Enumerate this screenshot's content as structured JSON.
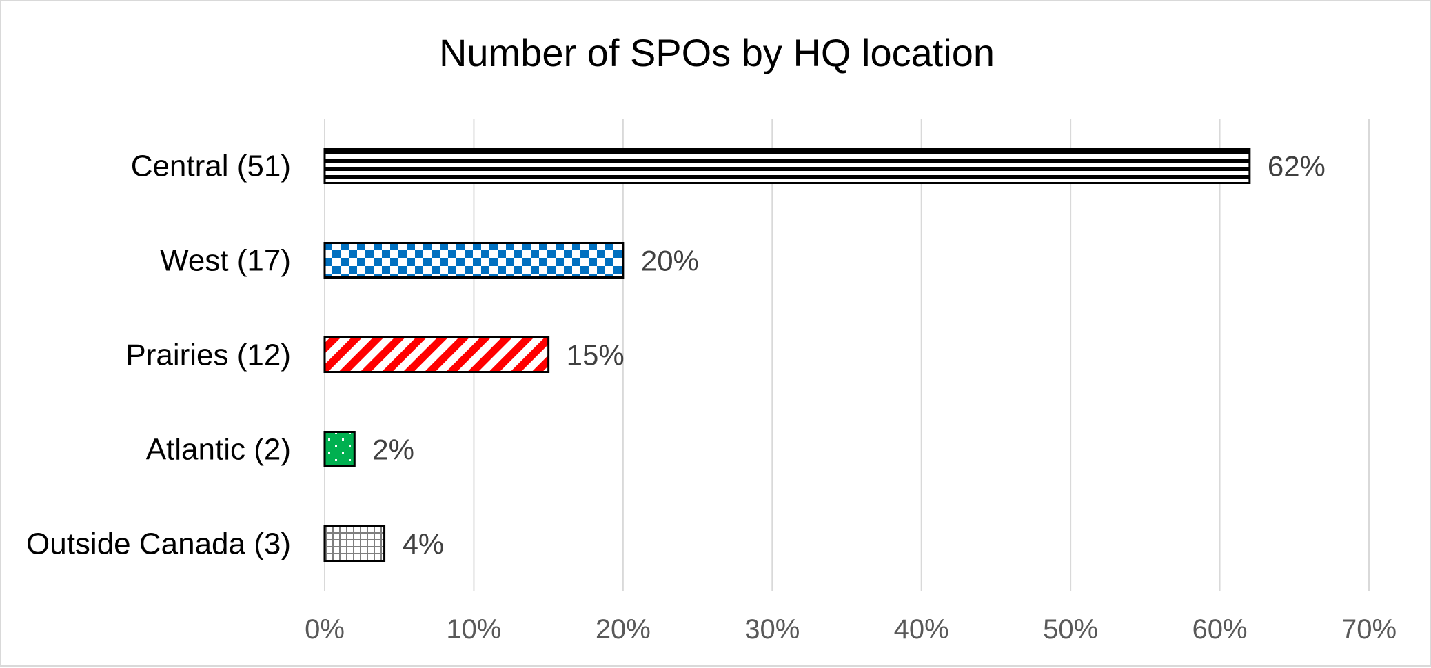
{
  "chart_data": {
    "type": "bar",
    "orientation": "horizontal",
    "title": "Number of SPOs by HQ location",
    "xlabel": "",
    "ylabel": "",
    "xlim": [
      0,
      70
    ],
    "x_ticks": [
      0,
      10,
      20,
      30,
      40,
      50,
      60,
      70
    ],
    "x_tick_labels": [
      "0%",
      "10%",
      "20%",
      "30%",
      "40%",
      "50%",
      "60%",
      "70%"
    ],
    "grid": "vertical",
    "legend": "none",
    "categories": [
      "Central (51)",
      "West (17)",
      "Prairies (12)",
      "Atlantic (2)",
      "Outside Canada (3)"
    ],
    "values": [
      62,
      20,
      15,
      2,
      4
    ],
    "data_labels": [
      "62%",
      "20%",
      "15%",
      "2%",
      "4%"
    ],
    "patterns": [
      "horizontal-stripes",
      "checkerboard",
      "diagonal-stripes",
      "dotted",
      "grid"
    ],
    "colors": [
      "#000000",
      "#0070c0",
      "#ff0000",
      "#00b050",
      "#7f7f7f"
    ]
  }
}
